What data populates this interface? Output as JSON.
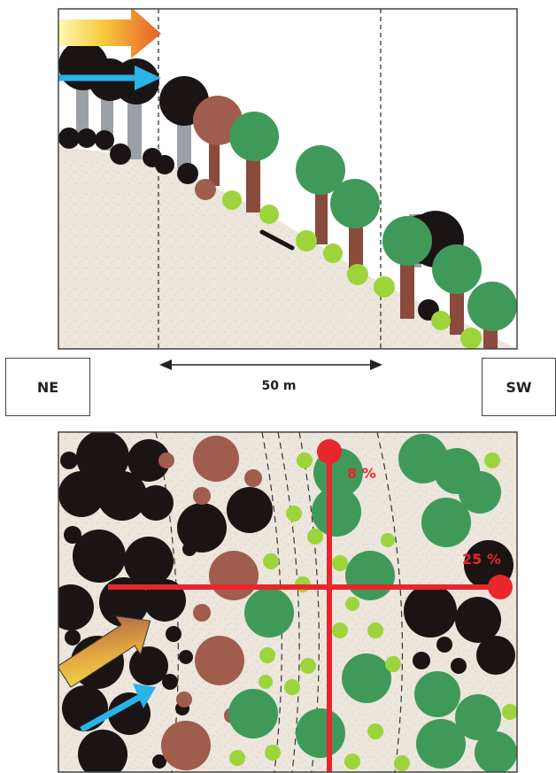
{
  "labels": {
    "left_direction": "NE",
    "right_direction": "SW",
    "distance": "50 m"
  },
  "slopes": {
    "along_slope": "8 %",
    "across_slope": "25 %"
  },
  "colors": {
    "ground": "#ece6dc",
    "dark_tree": "#1a1414",
    "brown_tree": "#a05c4c",
    "green_tree": "#3f9a5a",
    "light_green_shrub": "#9dd43c",
    "trunk_grey": "#9aa0a6",
    "trunk_brown": "#8a4a3c",
    "cross": "#e8262b",
    "wind_arrow": "#29b3e8"
  }
}
